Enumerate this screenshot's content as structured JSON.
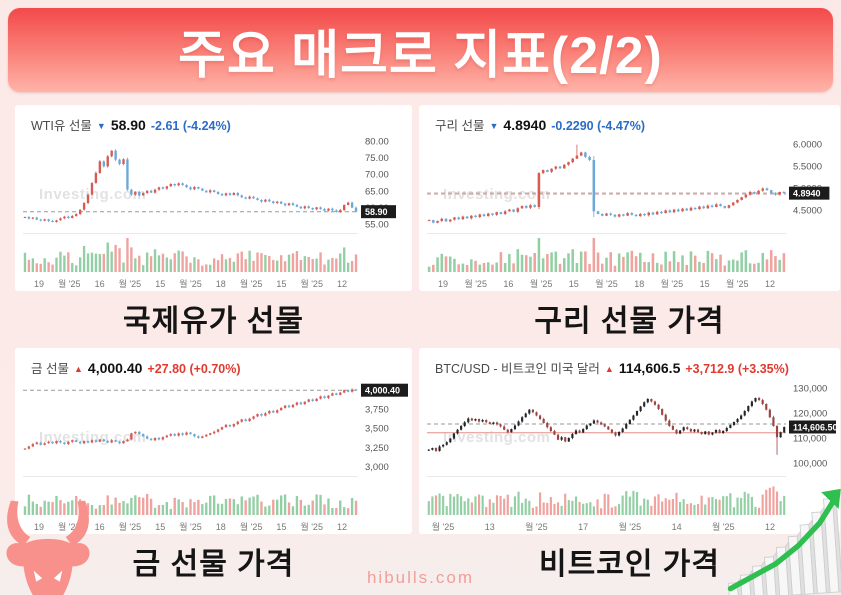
{
  "title": "주요 매크로 지표(2/2)",
  "footer": "hibulls.com",
  "colors": {
    "banner_top": "#f3494a",
    "banner_bottom": "#ffb3a8",
    "up_accent": "#e03a30",
    "down_accent": "#2a6cc8",
    "footer_text": "#ef9f98",
    "badge_bg": "#1c1c1c"
  },
  "icons": {
    "bull_icon": "bull-head-silhouette",
    "growth_icon": "rising-3d-bar-chart-with-green-arrow",
    "up_arrow": "▲",
    "down_arrow": "▼"
  },
  "charts": [
    {
      "caption": "국제유가 선물",
      "name": "WTI유 선물",
      "arrow": "▼",
      "price": "58.90",
      "change": "-2.61 (-4.24%)",
      "trend": "down"
    },
    {
      "caption": "구리 선물 가격",
      "name": "구리 선물",
      "arrow": "▼",
      "price": "4.8940",
      "change": "-0.2290 (-4.47%)",
      "trend": "down"
    },
    {
      "caption": "금 선물 가격",
      "name": "금 선물",
      "arrow": "▲",
      "price": "4,000.40",
      "change": "+27.80 (+0.70%)",
      "trend": "up"
    },
    {
      "caption": "비트코인 가격",
      "name": "BTC/USD - 비트코인 미국 달러",
      "arrow": "▲",
      "price": "114,606.5",
      "change": "+3,712.9 (+3.35%)",
      "trend": "up"
    }
  ],
  "chart_data": [
    {
      "type": "candlestick",
      "title": "WTI유 선물",
      "watermark": "Investing.com",
      "ylim": [
        54,
        81
      ],
      "yticks": [
        {
          "label": "80.00",
          "value": 80
        },
        {
          "label": "75.00",
          "value": 75
        },
        {
          "label": "70.00",
          "value": 70
        },
        {
          "label": "65.00",
          "value": 65
        },
        {
          "label": "60.00",
          "value": 60
        },
        {
          "label": "55.00",
          "value": 55
        }
      ],
      "price_badge": {
        "label": "58.90",
        "value": 58.9
      },
      "lines": [
        {
          "value": 58.9,
          "color": "#9a9a9a",
          "dash": true
        }
      ],
      "xlabels": [
        "19",
        "월 '25",
        "16",
        "월 '25",
        "15",
        "월 '25",
        "18",
        "월 '25",
        "15",
        "월 '25",
        "12"
      ],
      "closes": [
        57.3,
        56.8,
        57.1,
        56.5,
        56.2,
        56.6,
        56.1,
        55.8,
        56.3,
        56.9,
        57.4,
        57.0,
        57.6,
        58.2,
        59.5,
        61.5,
        64.0,
        67.5,
        70.5,
        74.0,
        72.5,
        75.5,
        77.2,
        74.5,
        73.2,
        74.6,
        65.5,
        64.0,
        64.8,
        63.8,
        64.5,
        65.2,
        64.6,
        65.5,
        66.2,
        65.8,
        66.5,
        67.2,
        66.8,
        67.4,
        66.9,
        66.2,
        65.6,
        66.3,
        65.8,
        65.2,
        64.7,
        65.3,
        64.8,
        64.2,
        63.8,
        64.4,
        63.9,
        64.5,
        63.8,
        63.2,
        62.8,
        63.4,
        62.9,
        62.4,
        61.9,
        62.5,
        62.0,
        61.5,
        61.9,
        61.3,
        60.8,
        61.4,
        60.9,
        60.4,
        59.9,
        60.5,
        60.0,
        59.6,
        60.2,
        59.7,
        59.2,
        59.8,
        59.3,
        58.8,
        59.4,
        60.9,
        61.6,
        60.1,
        58.9
      ],
      "colors": {
        "up": "#d65b53",
        "down": "#6da7d8",
        "vol_up": "#93cfa4",
        "vol_down": "#f0a29e"
      },
      "wick_overrides": [],
      "seed": 7
    },
    {
      "type": "candlestick",
      "title": "구리 선물",
      "watermark": "Investing.com",
      "ylim": [
        4.1,
        6.15
      ],
      "yticks": [
        {
          "label": "6.0000",
          "value": 6.0
        },
        {
          "label": "5.5000",
          "value": 5.5
        },
        {
          "label": "5.0000",
          "value": 5.0
        },
        {
          "label": "4.5000",
          "value": 4.5
        }
      ],
      "price_badge": {
        "label": "4.8940",
        "value": 4.894
      },
      "lines": [
        {
          "value": 4.894,
          "color": "#9a9a9a",
          "dash": true
        },
        {
          "value": 4.87,
          "color": "#e8b6b2",
          "dash": true
        }
      ],
      "xlabels": [
        "19",
        "월 '25",
        "16",
        "월 '25",
        "15",
        "월 '25",
        "18",
        "월 '25",
        "15",
        "월 '25",
        "12"
      ],
      "closes": [
        4.28,
        4.22,
        4.26,
        4.31,
        4.25,
        4.29,
        4.34,
        4.3,
        4.36,
        4.32,
        4.38,
        4.35,
        4.41,
        4.37,
        4.43,
        4.4,
        4.46,
        4.42,
        4.48,
        4.52,
        4.47,
        4.55,
        4.6,
        4.56,
        4.62,
        4.58,
        5.35,
        5.42,
        5.38,
        5.45,
        5.5,
        5.46,
        5.54,
        5.6,
        5.68,
        5.75,
        5.82,
        5.72,
        5.65,
        4.48,
        4.42,
        4.38,
        4.43,
        4.4,
        4.36,
        4.41,
        4.38,
        4.44,
        4.4,
        4.37,
        4.42,
        4.39,
        4.45,
        4.41,
        4.47,
        4.44,
        4.5,
        4.46,
        4.52,
        4.48,
        4.54,
        4.5,
        4.56,
        4.53,
        4.59,
        4.55,
        4.61,
        4.58,
        4.64,
        4.6,
        4.56,
        4.62,
        4.68,
        4.74,
        4.8,
        4.86,
        4.92,
        4.88,
        4.95,
        5.0,
        4.96,
        4.9,
        4.86,
        4.92,
        4.894
      ],
      "colors": {
        "up": "#d65b53",
        "down": "#6da7d8",
        "vol_up": "#93cfa4",
        "vol_down": "#f0a29e"
      },
      "wick_overrides": [
        {
          "index": 35,
          "high": 6.0
        },
        {
          "index": 39,
          "low": 4.35
        }
      ],
      "seed": 13
    },
    {
      "type": "candlestick",
      "title": "금 선물",
      "watermark": "Investing.com",
      "ylim": [
        2950,
        4120
      ],
      "yticks": [
        {
          "label": "3,750",
          "value": 3750
        },
        {
          "label": "3,500",
          "value": 3500
        },
        {
          "label": "3,250",
          "value": 3250
        },
        {
          "label": "3,000",
          "value": 3000
        }
      ],
      "price_badge": {
        "label": "4,000.40",
        "value": 4000.4
      },
      "lines": [
        {
          "value": 4000.4,
          "color": "#9a9a9a",
          "dash": true
        }
      ],
      "xlabels": [
        "19",
        "월 '25",
        "16",
        "월 '25",
        "15",
        "월 '25",
        "18",
        "월 '25",
        "15",
        "월 '25",
        "12"
      ],
      "closes": [
        3240,
        3270,
        3300,
        3320,
        3290,
        3310,
        3330,
        3310,
        3340,
        3320,
        3300,
        3330,
        3350,
        3330,
        3310,
        3340,
        3320,
        3350,
        3330,
        3360,
        3340,
        3320,
        3350,
        3330,
        3310,
        3340,
        3360,
        3440,
        3460,
        3430,
        3400,
        3370,
        3350,
        3380,
        3360,
        3390,
        3410,
        3430,
        3410,
        3440,
        3420,
        3450,
        3430,
        3400,
        3380,
        3400,
        3420,
        3440,
        3460,
        3490,
        3520,
        3550,
        3530,
        3560,
        3590,
        3620,
        3600,
        3630,
        3660,
        3690,
        3670,
        3700,
        3730,
        3710,
        3740,
        3770,
        3800,
        3780,
        3810,
        3840,
        3820,
        3850,
        3880,
        3860,
        3890,
        3920,
        3900,
        3930,
        3960,
        3940,
        3970,
        4000,
        3980,
        4010,
        4000.4
      ],
      "colors": {
        "up": "#d65b53",
        "down": "#6da7d8",
        "vol_up": "#93cfa4",
        "vol_down": "#f0a29e"
      },
      "wick_overrides": [],
      "seed": 21
    },
    {
      "type": "candlestick",
      "title": "BTC/USD - 비트코인 미국 달러",
      "watermark": "Investing.com",
      "ylim": [
        97000,
        133000
      ],
      "yticks": [
        {
          "label": "130,000",
          "value": 130000
        },
        {
          "label": "120,000",
          "value": 120000
        },
        {
          "label": "110,000",
          "value": 110000
        },
        {
          "label": "100,000",
          "value": 100000
        }
      ],
      "price_badge": {
        "label": "114,606.50",
        "value": 114606.5
      },
      "lines": [
        {
          "value": 115800,
          "color": "#9a9a9a",
          "dash": true
        },
        {
          "value": 112300,
          "color": "#e58f8a",
          "dash": false
        }
      ],
      "xlabels": [
        "월 '25",
        "13",
        "월 '25",
        "17",
        "월 '25",
        "14",
        "월 '25",
        "12"
      ],
      "closes": [
        105500,
        106200,
        105000,
        106800,
        107500,
        108500,
        110000,
        112000,
        113500,
        115000,
        116500,
        118000,
        117200,
        117800,
        116800,
        117400,
        116500,
        115800,
        116400,
        115600,
        114800,
        113500,
        112500,
        113800,
        115200,
        116800,
        118500,
        120000,
        121500,
        120500,
        119200,
        117800,
        116200,
        114500,
        113000,
        111500,
        109500,
        110500,
        108800,
        110200,
        111800,
        113200,
        112400,
        113800,
        115200,
        116000,
        117200,
        116400,
        115600,
        114800,
        113600,
        112400,
        111200,
        112600,
        114000,
        115800,
        117500,
        119200,
        121000,
        122800,
        124500,
        125800,
        124800,
        123500,
        121800,
        119500,
        117200,
        115000,
        113500,
        112000,
        113200,
        114500,
        113800,
        112800,
        113600,
        112600,
        111800,
        112800,
        111600,
        112400,
        113400,
        112200,
        113000,
        114200,
        115400,
        116600,
        117800,
        119200,
        121000,
        123000,
        124800,
        126200,
        125400,
        123800,
        121500,
        118500,
        115000,
        110500,
        112500,
        114606.5
      ],
      "colors": {
        "up": "#23262b",
        "down": "#9c4441",
        "vol_up": "#93cfa4",
        "vol_down": "#f0a29e"
      },
      "wick_overrides": [
        {
          "index": 97,
          "low": 103500
        }
      ],
      "seed": 33
    }
  ]
}
